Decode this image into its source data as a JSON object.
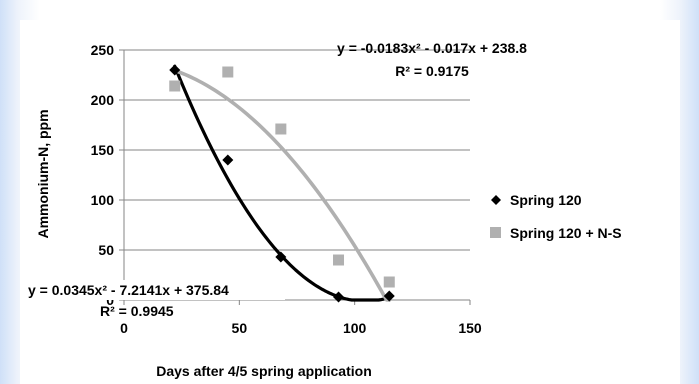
{
  "chart_data": {
    "type": "scatter",
    "xlabel": "Days after 4/5 spring application",
    "ylabel": "Ammonium-N, ppm",
    "xlim": [
      0,
      150
    ],
    "ylim": [
      0,
      250
    ],
    "x_ticks": [
      "0",
      "50",
      "100",
      "150"
    ],
    "y_ticks": [
      "0",
      "50",
      "100",
      "150",
      "200",
      "250"
    ],
    "grid": "horizontal",
    "legend_position": "right",
    "series": [
      {
        "name": "Spring 120",
        "marker": "diamond",
        "color": "#000000",
        "points": [
          {
            "x": 22,
            "y": 230
          },
          {
            "x": 45,
            "y": 140
          },
          {
            "x": 68,
            "y": 43
          },
          {
            "x": 93,
            "y": 3
          },
          {
            "x": 115,
            "y": 4
          }
        ],
        "trendline": {
          "equation": "y = 0.0345x² - 7.2141x + 375.84",
          "r2": "R² = 0.9945",
          "coeffs": [
            0.0345,
            -7.2141,
            375.84
          ]
        }
      },
      {
        "name": "Spring 120 + N-S",
        "marker": "square",
        "color": "#b0b0b0",
        "points": [
          {
            "x": 22,
            "y": 214
          },
          {
            "x": 45,
            "y": 228
          },
          {
            "x": 68,
            "y": 171
          },
          {
            "x": 93,
            "y": 40
          },
          {
            "x": 115,
            "y": 18
          }
        ],
        "trendline": {
          "equation": "y = -0.0183x² - 0.017x + 238.8",
          "r2": "R² = 0.9175",
          "coeffs": [
            -0.0183,
            -0.017,
            238.8
          ]
        }
      }
    ]
  }
}
